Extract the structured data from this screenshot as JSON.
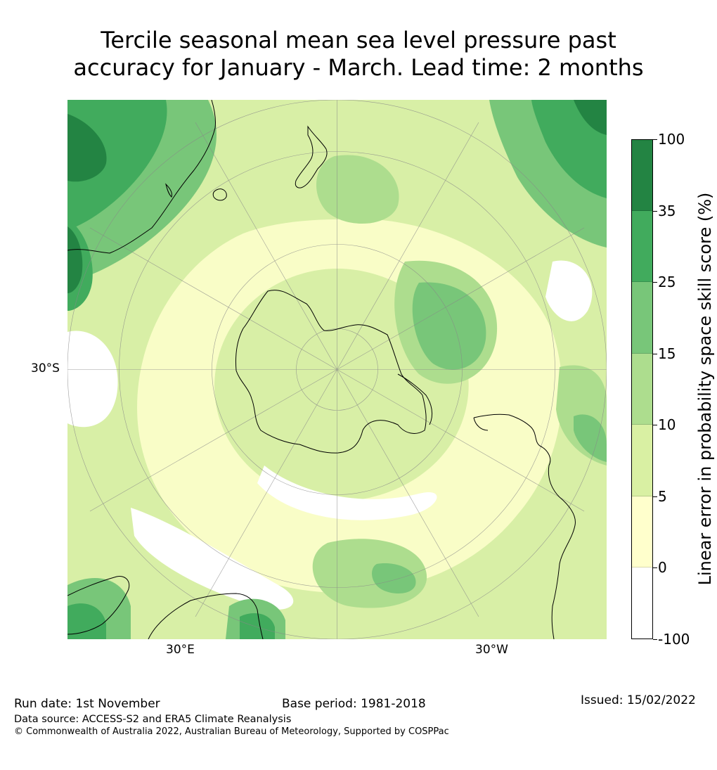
{
  "title_line1": "Tercile seasonal mean sea level pressure past",
  "title_line2": "accuracy for January - March. Lead time: 2 months",
  "map": {
    "projection": "south-polar-stereographic",
    "colors": {
      "ocean_bg": "#d8efa6",
      "land_outline": "#000000",
      "graticule": "#888888"
    },
    "lat_labels": [
      "30°S"
    ],
    "lon_labels": [
      "30°E",
      "30°W"
    ]
  },
  "colorbar": {
    "title": "Linear error in probability space skill score (%)",
    "ticks": [
      "100",
      "35",
      "25",
      "15",
      "10",
      "5",
      "0",
      "-100"
    ],
    "bins": [
      {
        "range": "35 to 100",
        "color": "#238443"
      },
      {
        "range": "25 to 35",
        "color": "#41ab5d"
      },
      {
        "range": "15 to 25",
        "color": "#78c679"
      },
      {
        "range": "10 to 15",
        "color": "#addd8e"
      },
      {
        "range": "5 to 10",
        "color": "#d9f0a3"
      },
      {
        "range": "0 to 5",
        "color": "#ffffcc"
      },
      {
        "range": "-100 to 0",
        "color": "#ffffff"
      }
    ]
  },
  "footer": {
    "run_date": "Run date: 1st November",
    "base_period": "Base period: 1981-2018",
    "issued": "Issued: 15/02/2022",
    "data_source": "Data source: ACCESS-S2 and ERA5 Climate Reanalysis",
    "copyright": "© Commonwealth of Australia 2022, Australian Bureau of Meteorology, Supported by COSPPac"
  }
}
